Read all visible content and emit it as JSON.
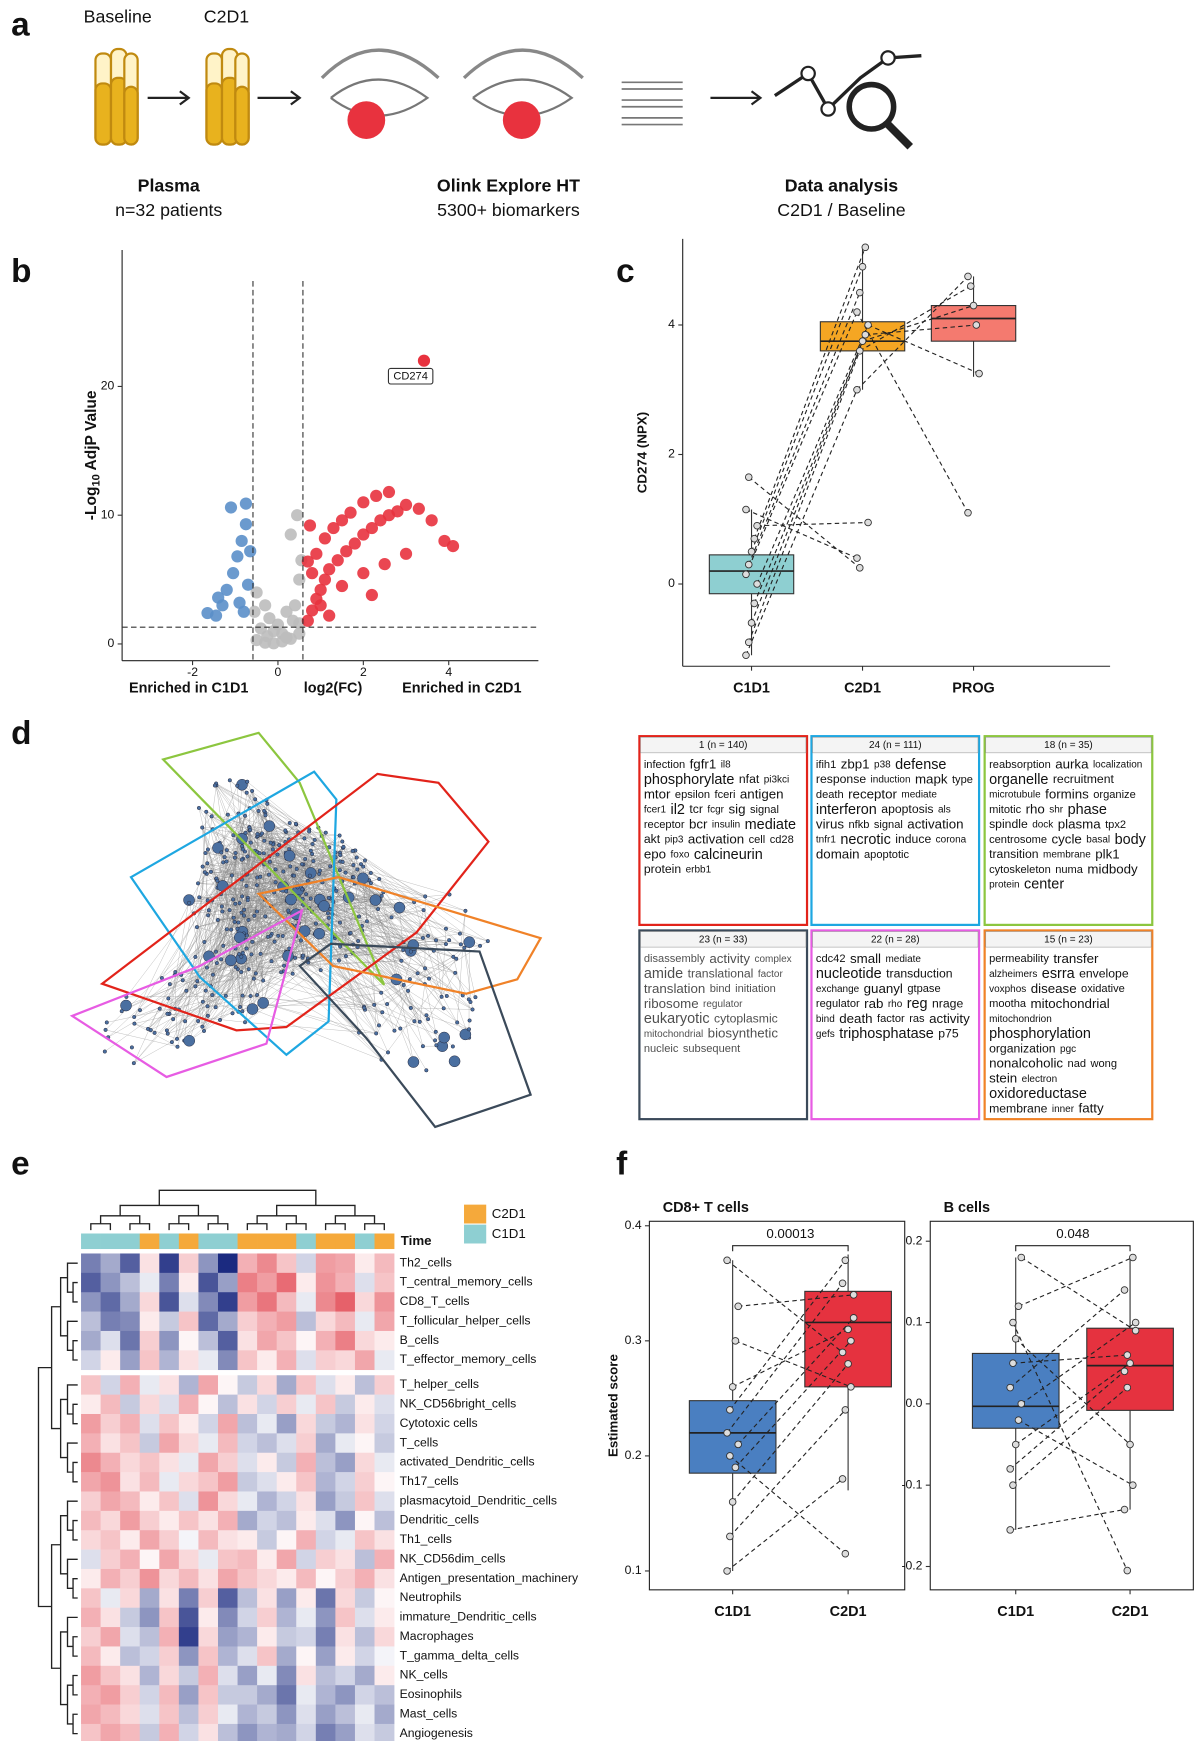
{
  "panel_labels": [
    "a",
    "b",
    "c",
    "d",
    "e",
    "f"
  ],
  "workflow": {
    "labels": [
      "Baseline",
      "C2D1"
    ],
    "steps": [
      {
        "title": "Plasma",
        "subtitle": "n=32 patients"
      },
      {
        "title": "Olink Explore HT",
        "subtitle": "5300+ biomarkers"
      },
      {
        "title": "Data analysis",
        "subtitle": "C2D1 / Baseline"
      }
    ]
  },
  "chart_data": [
    {
      "type": "scatter",
      "xlabel_left": "Enriched in C1D1",
      "xlabel": "log2(FC)",
      "xlabel_right": "Enriched in C2D1",
      "ylabel_parts": [
        "-Log",
        "10",
        " AdjP Value"
      ],
      "xlim": [
        -3.65,
        6.1
      ],
      "ylim": [
        -1.3,
        30.6
      ],
      "xticks": [
        -2,
        0,
        2,
        4
      ],
      "yticks": [
        0,
        10,
        20
      ],
      "vlines": [
        -0.585,
        0.585
      ],
      "hlines": [
        1.3
      ],
      "series": [
        {
          "color": "#bdbdbd",
          "x": [
            -0.5,
            -0.3,
            -0.1,
            0.1,
            0.3,
            0.5,
            -0.4,
            -0.2,
            0,
            0.2,
            0.4,
            0.5,
            0.3,
            0.45,
            -0.5,
            -0.3,
            0.1,
            -0.1,
            0.55,
            0.5,
            -0.55,
            0.2,
            0.35,
            -0.25
          ],
          "values": [
            0.3,
            0.1,
            0.05,
            0.2,
            0.4,
            0.8,
            1.2,
            2,
            1.5,
            2.5,
            3,
            5,
            8.5,
            10,
            4,
            3,
            0.8,
            1,
            6.5,
            1.6,
            2.5,
            0.5,
            1.8,
            0.6
          ]
        },
        {
          "color": "#5b8fc9",
          "x": [
            -1.65,
            -1.45,
            -1.3,
            -1.2,
            -1.05,
            -0.95,
            -0.85,
            -0.75,
            -1.1,
            -0.75,
            -0.9,
            -0.7,
            -0.65,
            -1.4,
            -0.8
          ],
          "values": [
            2.4,
            2.2,
            3,
            4.2,
            5.5,
            6.8,
            8,
            9.3,
            10.6,
            10.9,
            3.2,
            4.6,
            7.2,
            3.6,
            2.5
          ]
        },
        {
          "color": "#e8323e",
          "x": [
            0.7,
            0.8,
            0.9,
            1,
            1.1,
            1.2,
            1.4,
            1.6,
            1.8,
            2,
            2.2,
            2.4,
            2.6,
            2.8,
            3,
            3.3,
            3.6,
            3.9,
            4.1,
            0.8,
            0.9,
            1.1,
            1.3,
            1.5,
            1.7,
            2,
            2.3,
            2.6,
            1,
            1.5,
            2,
            2.5,
            3,
            1.2,
            2.2,
            0.7,
            0.75
          ],
          "values": [
            1.8,
            2.6,
            3.5,
            4.2,
            5,
            5.8,
            6.5,
            7.2,
            7.8,
            8.5,
            9,
            9.6,
            10,
            10.3,
            10.8,
            10.5,
            9.6,
            8,
            7.6,
            5.5,
            7,
            8.2,
            9,
            9.6,
            10.2,
            11,
            11.5,
            11.8,
            3,
            4.5,
            5.5,
            6.2,
            7,
            2.2,
            3.8,
            6.4,
            9.2
          ]
        }
      ],
      "annotations": [
        {
          "text": "CD274",
          "x": 3.42,
          "y": 22,
          "color": "#e8323e"
        }
      ]
    },
    {
      "type": "box",
      "ylabel": "CD274 (NPX)",
      "categories": [
        "C1D1",
        "C2D1",
        "PROG"
      ],
      "colors": [
        "#8ecfd1",
        "#f5a623",
        "#f47a6f"
      ],
      "ylim": [
        -1.27,
        5.33
      ],
      "yticks": [
        0,
        2,
        4
      ],
      "boxes": [
        {
          "q1": -0.15,
          "median": 0.2,
          "q3": 0.45,
          "whisker_low": -1.1,
          "whisker_high": 1.15
        },
        {
          "q1": 3.6,
          "median": 3.75,
          "q3": 4.05,
          "whisker_low": 3.0,
          "whisker_high": 5.2
        },
        {
          "q1": 3.75,
          "median": 4.1,
          "q3": 4.3,
          "whisker_low": 3.2,
          "whisker_high": 4.75
        }
      ],
      "points": [
        [
          -1.1,
          -0.9,
          -0.6,
          -0.3,
          0,
          0.15,
          0.3,
          0.5,
          0.7,
          0.9,
          1.15,
          1.65
        ],
        [
          3.0,
          3.6,
          3.75,
          3.85,
          4.0,
          4.2,
          4.5,
          4.9,
          5.2,
          0.95,
          0.4,
          0.25
        ],
        [
          4.75,
          4.6,
          4.3,
          4.0,
          3.25,
          1.1
        ]
      ]
    },
    {
      "type": "box",
      "title": "CD8+ T cells",
      "ylabel": "Estimated score",
      "categories": [
        "C1D1",
        "C2D1"
      ],
      "colors": [
        "#4a7fc1",
        "#e5323f"
      ],
      "ylim": [
        0.0836,
        0.4039
      ],
      "yticks": [
        0.1,
        0.2,
        0.3,
        0.4
      ],
      "pvalue": 0.00013,
      "boxes": [
        {
          "q1": 0.185,
          "median": 0.22,
          "q3": 0.248,
          "whisker_low": 0.1,
          "whisker_high": 0.37
        },
        {
          "q1": 0.26,
          "median": 0.316,
          "q3": 0.343,
          "whisker_low": 0.17,
          "whisker_high": 0.375
        }
      ],
      "points": [
        [
          0.1,
          0.13,
          0.16,
          0.19,
          0.21,
          0.22,
          0.24,
          0.26,
          0.3,
          0.33,
          0.37,
          0.2
        ],
        [
          0.18,
          0.24,
          0.28,
          0.3,
          0.32,
          0.35,
          0.37,
          0.31,
          0.26,
          0.34,
          0.29,
          0.115
        ]
      ]
    },
    {
      "type": "box",
      "title": "B cells",
      "categories": [
        "C1D1",
        "C2D1"
      ],
      "colors": [
        "#4a7fc1",
        "#e5323f"
      ],
      "ylim": [
        -0.2287,
        0.2245
      ],
      "yticks": [
        -0.2,
        -0.1,
        {
          "value": 0,
          "label": "0.0"
        },
        0.1,
        0.2
      ],
      "pvalue": 0.048,
      "boxes": [
        {
          "q1": -0.03,
          "median": -0.003,
          "q3": 0.062,
          "whisker_low": -0.155,
          "whisker_high": 0.18
        },
        {
          "q1": -0.008,
          "median": 0.047,
          "q3": 0.093,
          "whisker_low": -0.13,
          "whisker_high": 0.18
        }
      ],
      "points": [
        [
          -0.155,
          -0.1,
          -0.05,
          -0.02,
          0,
          0.02,
          0.05,
          0.08,
          0.12,
          0.18,
          -0.08,
          0.1
        ],
        [
          -0.13,
          0.02,
          0.05,
          -0.1,
          0.1,
          0.14,
          0.06,
          -0.05,
          0.18,
          0.09,
          0.04,
          -0.205
        ]
      ]
    },
    {
      "type": "heatmap",
      "colors": [
        "#1b2a80",
        "#ffffff",
        "#e03a45"
      ],
      "zlim": [
        -2,
        2
      ],
      "rows": [
        "Th2_cells",
        "T_central_memory_cells",
        "CD8_T_cells",
        "T_follicular_helper_cells",
        "B_cells",
        "T_effector_memory_cells",
        "T_helper_cells",
        "NK_CD56bright_cells",
        "Cytotoxic cells",
        "T_cells",
        "activated_Dendritic_cells",
        "Th17_cells",
        "plasmacytoid_Dendritic_cells",
        "Dendritic_cells",
        "Th1_cells",
        "NK_CD56dim_cells",
        "Antigen_presentation_machinery",
        "Neutrophils",
        "immature_Dendritic_cells",
        "Macrophages",
        "T_gamma_delta_cells",
        "NK_cells",
        "Eosinophils",
        "Mast_cells",
        "Angiogenesis"
      ],
      "annotation": {
        "title": "Time",
        "legend": [
          {
            "name": "C2D1",
            "color": "#f5a93b"
          },
          {
            "name": "C1D1",
            "color": "#8ecfd2"
          }
        ],
        "values": [
          1,
          1,
          1,
          0,
          1,
          0,
          1,
          1,
          0,
          0,
          0,
          1,
          0,
          0,
          1,
          0
        ]
      },
      "values": [
        [
          -1.2,
          -0.8,
          -1.5,
          0.3,
          -1.8,
          0.5,
          -1.0,
          -2.0,
          0.8,
          1.2,
          0.6,
          -0.4,
          1.0,
          0.9,
          0.2,
          0.7
        ],
        [
          -1.5,
          -1.0,
          -0.6,
          -0.2,
          -1.2,
          0.2,
          -1.6,
          -0.9,
          1.3,
          1.0,
          1.5,
          0.2,
          1.1,
          0.8,
          -0.3,
          0.6
        ],
        [
          -1.0,
          -1.4,
          -0.8,
          0.4,
          -1.6,
          -0.3,
          -1.1,
          -1.8,
          1.0,
          1.4,
          0.7,
          -0.2,
          1.2,
          1.6,
          0.4,
          1.1
        ],
        [
          -0.6,
          -1.2,
          -1.1,
          0.2,
          -0.5,
          0.6,
          -1.4,
          -0.8,
          0.5,
          0.8,
          1.0,
          -0.6,
          0.4,
          0.7,
          -0.2,
          0.9
        ],
        [
          -0.8,
          -0.3,
          -1.3,
          0.5,
          -1.0,
          0.1,
          -0.6,
          -1.5,
          0.3,
          0.9,
          0.6,
          0.1,
          0.8,
          1.3,
          0.4,
          0.2
        ],
        [
          -0.4,
          0.2,
          -0.9,
          0.6,
          -0.7,
          0.3,
          -0.2,
          -1.1,
          0.6,
          0.2,
          0.8,
          -0.3,
          0.5,
          0.4,
          0.9,
          -0.2
        ],
        [
          0.6,
          -0.4,
          0.8,
          -0.2,
          0.3,
          -0.7,
          0.9,
          0.1,
          -0.5,
          0.4,
          -0.8,
          0.6,
          -0.3,
          0.2,
          -0.6,
          0.5
        ],
        [
          0.2,
          0.7,
          -0.5,
          0.4,
          -0.3,
          0.8,
          0.1,
          -0.6,
          0.3,
          -0.4,
          0.5,
          -0.2,
          0.6,
          -0.5,
          0.2,
          -0.3
        ],
        [
          1.0,
          0.5,
          0.8,
          -0.3,
          0.6,
          0.2,
          -0.4,
          0.9,
          -0.6,
          -0.2,
          -0.9,
          0.4,
          -0.5,
          -0.7,
          0.3,
          -0.4
        ],
        [
          0.8,
          0.3,
          0.6,
          -0.5,
          0.9,
          0.4,
          -0.2,
          0.7,
          -0.4,
          -0.6,
          -0.3,
          0.5,
          -0.8,
          -0.2,
          0.1,
          -0.5
        ],
        [
          1.2,
          0.8,
          0.4,
          0.6,
          0.3,
          -0.2,
          0.9,
          0.5,
          -0.3,
          0.2,
          -0.5,
          0.8,
          -0.6,
          -0.9,
          0.4,
          -0.2
        ],
        [
          0.9,
          1.1,
          0.3,
          0.7,
          -0.2,
          0.4,
          0.6,
          1.0,
          -0.5,
          -0.3,
          0.2,
          0.6,
          -0.7,
          -0.4,
          0.5,
          0.1
        ],
        [
          0.5,
          0.9,
          0.7,
          0.2,
          0.6,
          -0.3,
          1.1,
          0.4,
          -0.2,
          -0.7,
          -0.4,
          0.3,
          -0.9,
          -0.5,
          0.6,
          -0.3
        ],
        [
          0.7,
          0.4,
          1.0,
          0.5,
          0.2,
          0.6,
          0.3,
          0.8,
          -0.8,
          -0.4,
          -0.6,
          0.2,
          -0.3,
          -1.0,
          0.1,
          -0.6
        ],
        [
          0.4,
          0.6,
          0.2,
          0.9,
          0.5,
          -0.1,
          0.7,
          0.3,
          0.2,
          -0.5,
          0.1,
          0.8,
          -0.4,
          -0.2,
          0.6,
          0.3
        ],
        [
          -0.3,
          0.5,
          0.8,
          0.1,
          0.9,
          0.4,
          -0.2,
          0.6,
          0.7,
          0.2,
          0.9,
          -0.4,
          0.5,
          0.3,
          -0.6,
          0.8
        ],
        [
          0.2,
          0.8,
          0.5,
          1.1,
          0.4,
          0.7,
          0.3,
          0.9,
          0.6,
          0.4,
          0.2,
          0.7,
          0.1,
          0.5,
          0.8,
          0.3
        ],
        [
          0.6,
          -0.2,
          0.4,
          -0.8,
          0.3,
          -1.2,
          0.5,
          -1.5,
          -0.6,
          0.3,
          -0.9,
          0.2,
          -1.3,
          0.4,
          -0.5,
          0.1
        ],
        [
          0.8,
          0.3,
          -0.5,
          -1.0,
          0.6,
          -1.6,
          0.2,
          -1.1,
          -0.4,
          0.5,
          -0.7,
          -0.2,
          -1.0,
          0.6,
          -0.3,
          0.2
        ],
        [
          0.5,
          0.9,
          -0.3,
          -0.6,
          0.8,
          -1.8,
          0.4,
          -0.9,
          -0.7,
          0.2,
          -0.5,
          -0.4,
          -1.2,
          0.3,
          -0.6,
          0.4
        ],
        [
          0.7,
          0.2,
          -0.6,
          -0.4,
          0.5,
          -1.0,
          0.6,
          -0.7,
          -0.3,
          0.6,
          -0.8,
          0.1,
          -0.9,
          0.2,
          -0.4,
          -0.1
        ],
        [
          1.0,
          0.6,
          0.3,
          -0.7,
          0.4,
          -0.5,
          0.8,
          -0.3,
          -0.9,
          -0.2,
          -1.1,
          0.3,
          -0.6,
          -0.4,
          -0.8,
          0.2
        ],
        [
          0.8,
          1.0,
          0.5,
          -0.4,
          0.7,
          -0.9,
          0.6,
          -0.5,
          -0.5,
          -0.8,
          -1.3,
          -0.2,
          -0.7,
          -1.0,
          -0.4,
          -0.6
        ],
        [
          0.9,
          0.7,
          0.4,
          -0.3,
          0.6,
          -0.6,
          0.5,
          -0.2,
          -0.7,
          -0.5,
          -1.0,
          -0.3,
          -0.9,
          -0.6,
          -0.2,
          -0.8
        ],
        [
          0.6,
          0.9,
          0.7,
          -0.5,
          0.8,
          -0.4,
          0.3,
          -0.6,
          -1.0,
          -0.7,
          -0.8,
          -0.4,
          -1.2,
          -0.9,
          -0.3,
          -0.5
        ]
      ]
    }
  ],
  "word_clouds": [
    {
      "header": "1 (n = 140)",
      "color": "#e2231a",
      "words": [
        "infection",
        "fgfr1",
        "il8",
        "phosphorylate",
        "nfat",
        "pi3kci",
        "mtor",
        "epsilon",
        "fceri",
        "antigen",
        "fcer1",
        "il2",
        "tcr",
        "fcgr",
        "sig",
        "signal",
        "receptor",
        "bcr",
        "insulin",
        "mediate",
        "akt",
        "pip3",
        "activation",
        "cell",
        "cd28",
        "epo",
        "foxo",
        "calcineurin",
        "protein",
        "erbb1"
      ]
    },
    {
      "header": "24 (n = 111)",
      "color": "#1ea7e1",
      "words": [
        "ifih1",
        "zbp1",
        "p38",
        "defense",
        "response",
        "induction",
        "mapk",
        "type",
        "death",
        "receptor",
        "mediate",
        "interferon",
        "apoptosis",
        "als",
        "virus",
        "nfkb",
        "signal",
        "activation",
        "tnfr1",
        "necrotic",
        "induce",
        "corona",
        "domain",
        "apoptotic"
      ]
    },
    {
      "header": "18 (n = 35)",
      "color": "#8cc63f",
      "words": [
        "reabsorption",
        "aurka",
        "localization",
        "organelle",
        "recruitment",
        "microtubule",
        "formins",
        "organize",
        "mitotic",
        "rho",
        "shr",
        "phase",
        "spindle",
        "dock",
        "plasma",
        "tpx2",
        "centrosome",
        "cycle",
        "basal",
        "body",
        "transition",
        "membrane",
        "plk1",
        "cytoskeleton",
        "numa",
        "midbody",
        "protein",
        "center"
      ]
    },
    {
      "header": "23 (n = 33)",
      "color": "#3b4a5a",
      "words": [
        "disassembly",
        "activity",
        "complex",
        "amide",
        "translational",
        "factor",
        "translation",
        "bind",
        "initiation",
        "ribosome",
        "regulator",
        "eukaryotic",
        "cytoplasmic",
        "mitochondrial",
        "biosynthetic",
        "nucleic",
        "subsequent"
      ]
    },
    {
      "header": "22 (n = 28)",
      "color": "#e75ce3",
      "words": [
        "cdc42",
        "small",
        "mediate",
        "nucleotide",
        "transduction",
        "exchange",
        "guanyl",
        "gtpase",
        "regulator",
        "rab",
        "rho",
        "reg",
        "nrage",
        "bind",
        "death",
        "factor",
        "ras",
        "activity",
        "gefs",
        "triphosphatase",
        "p75"
      ]
    },
    {
      "header": "15 (n = 23)",
      "color": "#f08228",
      "words": [
        "permeability",
        "transfer",
        "alzheimers",
        "esrra",
        "envelope",
        "voxphos",
        "disease",
        "oxidative",
        "mootha",
        "mitochondrial",
        "mitochondrion",
        "phosphorylation",
        "organization",
        "pgc",
        "nonalcoholic",
        "nad",
        "wong",
        "stein",
        "electron",
        "oxidoreductase",
        "membrane",
        "inner",
        "fatty"
      ]
    }
  ]
}
